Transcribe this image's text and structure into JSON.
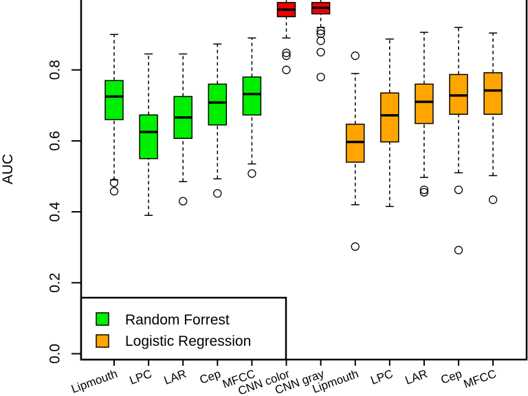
{
  "chart_data": {
    "type": "box",
    "ylabel": "AUC",
    "ylim": [
      -0.02,
      1.0
    ],
    "yticks": [
      "0.0",
      "0.2",
      "0.4",
      "0.6",
      "0.8"
    ],
    "ytick_values": [
      0.0,
      0.2,
      0.4,
      0.6,
      0.8
    ],
    "legend": {
      "placement": "bottom-left",
      "entries": [
        {
          "label": "Random Forrest",
          "color": "#00ee00"
        },
        {
          "label": "Logistic Regression",
          "color": "#ffa500"
        }
      ]
    },
    "boxes": [
      {
        "category": "Lipmouth",
        "label": "Lipmouth",
        "color": "#00ee00",
        "min": 0.49,
        "q1": 0.66,
        "median": 0.725,
        "q3": 0.77,
        "max": 0.9,
        "outliers": [
          0.482,
          0.458
        ]
      },
      {
        "category": "LPC",
        "label": "LPC",
        "color": "#00ee00",
        "min": 0.39,
        "q1": 0.55,
        "median": 0.625,
        "q3": 0.673,
        "max": 0.845,
        "outliers": []
      },
      {
        "category": "LAR",
        "label": "LAR",
        "color": "#00ee00",
        "min": 0.485,
        "q1": 0.607,
        "median": 0.666,
        "q3": 0.725,
        "max": 0.845,
        "outliers": [
          0.43
        ]
      },
      {
        "category": "Cep",
        "label": "Cep",
        "color": "#00ee00",
        "min": 0.493,
        "q1": 0.645,
        "median": 0.708,
        "q3": 0.76,
        "max": 0.873,
        "outliers": [
          0.452
        ]
      },
      {
        "category": "MFCC",
        "label": "MFCC",
        "color": "#00ee00",
        "min": 0.535,
        "q1": 0.673,
        "median": 0.732,
        "q3": 0.78,
        "max": 0.89,
        "outliers": [
          0.508
        ]
      },
      {
        "category": "CNN color",
        "label": "CNN color",
        "color": "#ee0000",
        "min": 0.89,
        "q1": 0.95,
        "median": 0.97,
        "q3": 0.99,
        "max": 1.0,
        "outliers": [
          0.848,
          0.84,
          0.8
        ]
      },
      {
        "category": "CNN gray",
        "label": "CNN gray",
        "color": "#ee0000",
        "min": 0.92,
        "q1": 0.958,
        "median": 0.975,
        "q3": 0.99,
        "max": 1.0,
        "outliers": [
          0.91,
          0.902,
          0.882,
          0.85,
          0.78
        ]
      },
      {
        "category": "Lipmouth",
        "label": "Lipmouth",
        "color": "#ffa500",
        "min": 0.42,
        "q1": 0.54,
        "median": 0.597,
        "q3": 0.647,
        "max": 0.79,
        "outliers": [
          0.84,
          0.302
        ]
      },
      {
        "category": "LPC",
        "label": "LPC",
        "color": "#ffa500",
        "min": 0.415,
        "q1": 0.597,
        "median": 0.672,
        "q3": 0.735,
        "max": 0.887,
        "outliers": []
      },
      {
        "category": "LAR",
        "label": "LAR",
        "color": "#ffa500",
        "min": 0.497,
        "q1": 0.649,
        "median": 0.71,
        "q3": 0.76,
        "max": 0.906,
        "outliers": [
          0.462,
          0.455
        ]
      },
      {
        "category": "Cep",
        "label": "Cep",
        "color": "#ffa500",
        "min": 0.51,
        "q1": 0.675,
        "median": 0.728,
        "q3": 0.787,
        "max": 0.92,
        "outliers": [
          0.462,
          0.292
        ]
      },
      {
        "category": "MFCC",
        "label": "MFCC",
        "color": "#ffa500",
        "min": 0.502,
        "q1": 0.675,
        "median": 0.742,
        "q3": 0.792,
        "max": 0.904,
        "outliers": [
          0.434
        ]
      }
    ]
  }
}
